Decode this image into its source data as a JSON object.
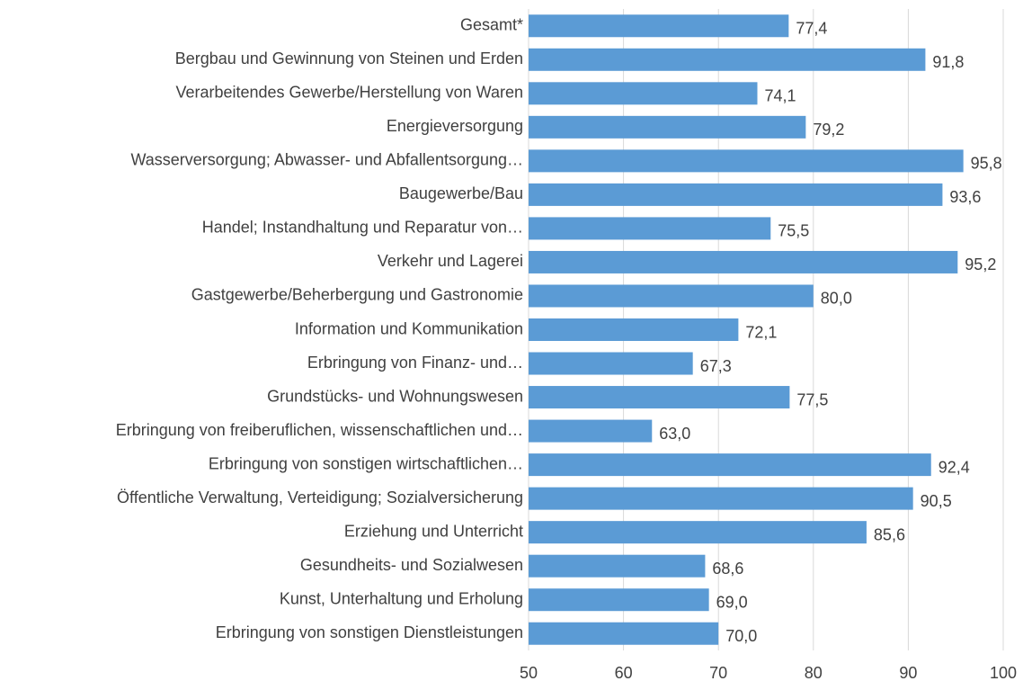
{
  "chart_data": {
    "type": "barh",
    "categories": [
      "Gesamt*",
      "Bergbau und Gewinnung von Steinen und Erden",
      "Verarbeitendes Gewerbe/Herstellung von Waren",
      "Energieversorgung",
      "Wasserversorgung; Abwasser- und Abfallentsorgung…",
      "Baugewerbe/Bau",
      "Handel; Instandhaltung und Reparatur von…",
      "Verkehr und Lagerei",
      "Gastgewerbe/Beherbergung und Gastronomie",
      "Information und Kommunikation",
      "Erbringung von Finanz- und…",
      "Grundstücks- und Wohnungswesen",
      "Erbringung von freiberuflichen, wissenschaftlichen und…",
      "Erbringung von sonstigen wirtschaftlichen…",
      "Öffentliche Verwaltung, Verteidigung; Sozialversicherung",
      "Erziehung und Unterricht",
      "Gesundheits- und Sozialwesen",
      "Kunst, Unterhaltung und Erholung",
      "Erbringung von sonstigen Dienstleistungen"
    ],
    "values": [
      77.4,
      91.8,
      74.1,
      79.2,
      95.8,
      93.6,
      75.5,
      95.2,
      80.0,
      72.1,
      67.3,
      77.5,
      63.0,
      92.4,
      90.5,
      85.6,
      68.6,
      69.0,
      70.0
    ],
    "value_labels": [
      "77,4",
      "91,8",
      "74,1",
      "79,2",
      "95,8",
      "93,6",
      "75,5",
      "95,2",
      "80,0",
      "72,1",
      "67,3",
      "77,5",
      "63,0",
      "92,4",
      "90,5",
      "85,6",
      "68,6",
      "69,0",
      "70,0"
    ],
    "color": "#5b9bd5",
    "xlim": [
      50,
      100
    ],
    "xticks": [
      50,
      60,
      70,
      80,
      90,
      100
    ],
    "grid": true
  }
}
